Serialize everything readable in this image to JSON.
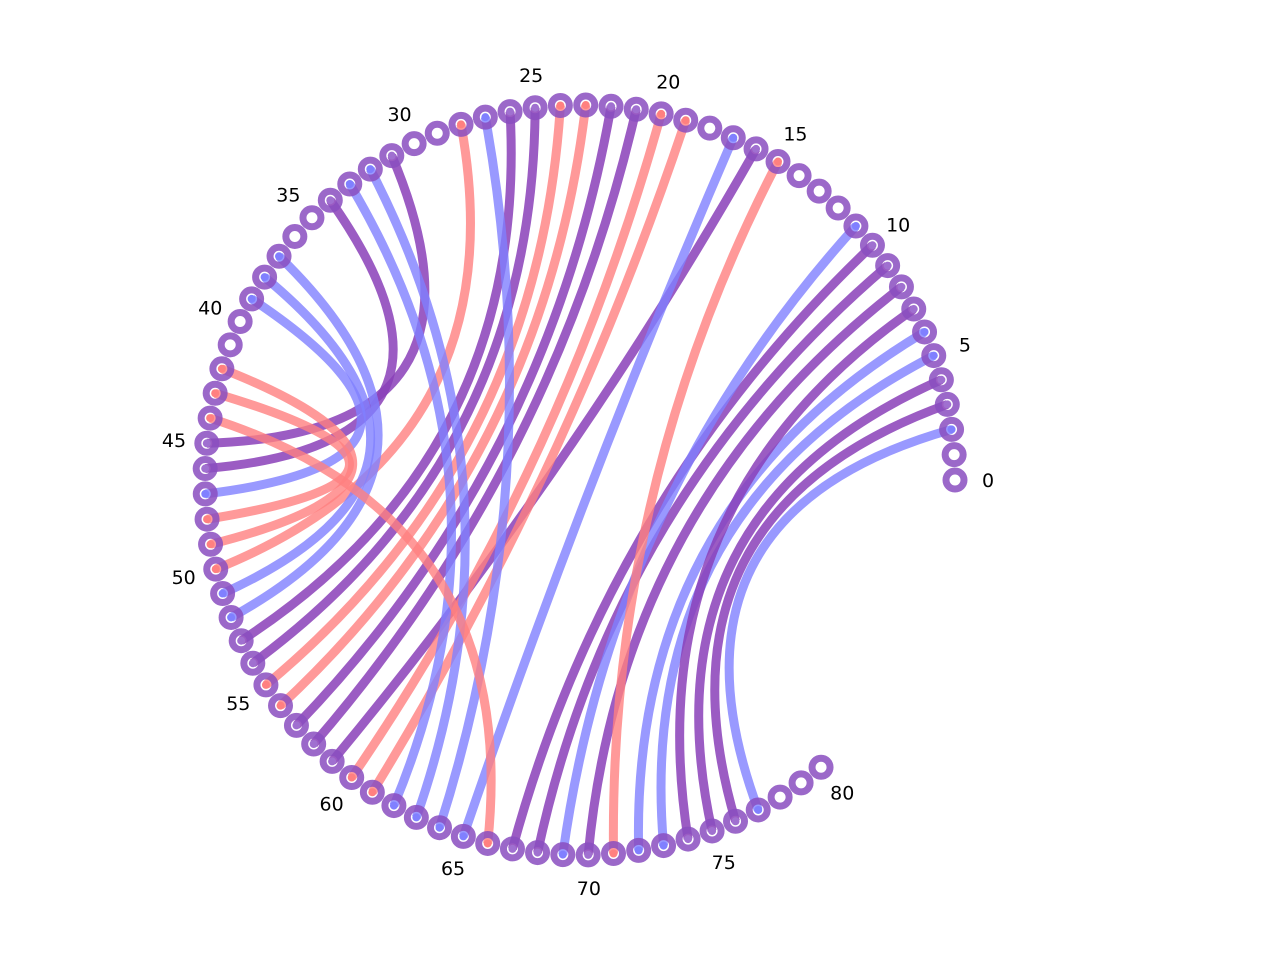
{
  "diagram": {
    "node_count": 81,
    "label_step": 5,
    "labels": [
      "0",
      "5",
      "10",
      "15",
      "20",
      "25",
      "30",
      "35",
      "40",
      "45",
      "50",
      "55",
      "60",
      "65",
      "70",
      "75",
      "80"
    ],
    "colors": {
      "red": "#ff8080",
      "blue": "#8080ff",
      "purple": "#8a40b8",
      "node": "#8a4ec0"
    },
    "pairs": [
      [
        2,
        77,
        "blue"
      ],
      [
        3,
        76,
        "purple"
      ],
      [
        4,
        75,
        "purple"
      ],
      [
        5,
        73,
        "blue"
      ],
      [
        6,
        72,
        "blue"
      ],
      [
        7,
        74,
        "purple"
      ],
      [
        8,
        70,
        "purple"
      ],
      [
        9,
        68,
        "purple"
      ],
      [
        10,
        67,
        "purple"
      ],
      [
        11,
        69,
        "blue"
      ],
      [
        15,
        71,
        "red"
      ],
      [
        16,
        59,
        "purple"
      ],
      [
        17,
        65,
        "blue"
      ],
      [
        19,
        61,
        "red"
      ],
      [
        20,
        60,
        "red"
      ],
      [
        21,
        58,
        "purple"
      ],
      [
        22,
        57,
        "purple"
      ],
      [
        23,
        56,
        "red"
      ],
      [
        24,
        55,
        "red"
      ],
      [
        25,
        54,
        "purple"
      ],
      [
        26,
        53,
        "purple"
      ],
      [
        27,
        64,
        "blue"
      ],
      [
        28,
        50,
        "red"
      ],
      [
        31,
        45,
        "purple"
      ],
      [
        32,
        63,
        "blue"
      ],
      [
        33,
        62,
        "blue"
      ],
      [
        34,
        46,
        "purple"
      ],
      [
        37,
        52,
        "blue"
      ],
      [
        38,
        51,
        "blue"
      ],
      [
        39,
        47,
        "blue"
      ],
      [
        42,
        49,
        "red"
      ],
      [
        43,
        48,
        "red"
      ],
      [
        44,
        66,
        "red"
      ]
    ]
  }
}
